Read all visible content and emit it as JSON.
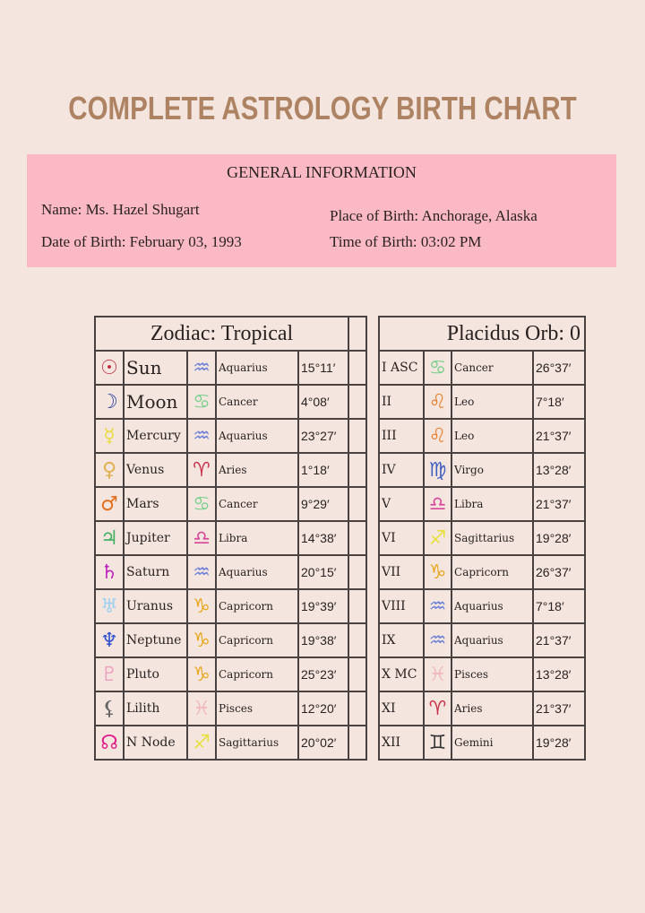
{
  "title": "COMPLETE ASTROLOGY BIRTH CHART",
  "general_info": {
    "heading": "GENERAL INFORMATION",
    "name": "Name: Ms. Hazel Shugart",
    "date_of_birth": "Date of Birth: February 03, 1993",
    "place_of_birth": "Place of Birth: Anchorage, Alaska",
    "time_of_birth": "Time of Birth: 03:02 PM"
  },
  "zodiac_header": "Zodiac: Tropical",
  "houses_header": "Placidus Orb: 0",
  "planets": [
    {
      "icon": "sun-icon",
      "glyph": "☉",
      "color": "#c03040",
      "name": "Sun",
      "sign_icon": "aquarius-icon",
      "sign_glyph": "♒",
      "sign_color": "#6b7fd8",
      "sign": "Aquarius",
      "degree": "15°11′"
    },
    {
      "icon": "moon-icon",
      "glyph": "☽",
      "color": "#3040a0",
      "name": "Moon",
      "sign_icon": "cancer-icon",
      "sign_glyph": "♋",
      "sign_color": "#7ccf8f",
      "sign": "Cancer",
      "degree": "4°08′"
    },
    {
      "icon": "mercury-icon",
      "glyph": "☿",
      "color": "#e8dc40",
      "name": "Mercury",
      "sign_icon": "aquarius-icon",
      "sign_glyph": "♒",
      "sign_color": "#6b7fd8",
      "sign": "Aquarius",
      "degree": "23°27′"
    },
    {
      "icon": "venus-icon",
      "glyph": "♀",
      "color": "#e0b050",
      "name": "Venus",
      "sign_icon": "aries-icon",
      "sign_glyph": "♈",
      "sign_color": "#c8304a",
      "sign": "Aries",
      "degree": "1°18′"
    },
    {
      "icon": "mars-icon",
      "glyph": "♂",
      "color": "#e07020",
      "name": "Mars",
      "sign_icon": "cancer-icon",
      "sign_glyph": "♋",
      "sign_color": "#7ccf8f",
      "sign": "Cancer",
      "degree": "9°29′"
    },
    {
      "icon": "jupiter-icon",
      "glyph": "♃",
      "color": "#40b060",
      "name": "Jupiter",
      "sign_icon": "libra-icon",
      "sign_glyph": "♎",
      "sign_color": "#d8479a",
      "sign": "Libra",
      "degree": "14°38′"
    },
    {
      "icon": "saturn-icon",
      "glyph": "♄",
      "color": "#c020c0",
      "name": "Saturn",
      "sign_icon": "aquarius-icon",
      "sign_glyph": "♒",
      "sign_color": "#6b7fd8",
      "sign": "Aquarius",
      "degree": "20°15′"
    },
    {
      "icon": "uranus-icon",
      "glyph": "♅",
      "color": "#a0d0f0",
      "name": "Uranus",
      "sign_icon": "capricorn-icon",
      "sign_glyph": "♑",
      "sign_color": "#e8a820",
      "sign": "Capricorn",
      "degree": "19°39′"
    },
    {
      "icon": "neptune-icon",
      "glyph": "♆",
      "color": "#3050d0",
      "name": "Neptune",
      "sign_icon": "capricorn-icon",
      "sign_glyph": "♑",
      "sign_color": "#e8a820",
      "sign": "Capricorn",
      "degree": "19°38′"
    },
    {
      "icon": "pluto-icon",
      "glyph": "♇",
      "color": "#f0a0c0",
      "name": "Pluto",
      "sign_icon": "capricorn-icon",
      "sign_glyph": "♑",
      "sign_color": "#e8a820",
      "sign": "Capricorn",
      "degree": "25°23′"
    },
    {
      "icon": "lilith-icon",
      "glyph": "⚸",
      "color": "#666666",
      "name": "Lilith",
      "sign_icon": "pisces-icon",
      "sign_glyph": "♓",
      "sign_color": "#f2b8c0",
      "sign": "Pisces",
      "degree": "12°20′"
    },
    {
      "icon": "north-node-icon",
      "glyph": "☊",
      "color": "#e0208a",
      "name": "N Node",
      "sign_icon": "sagittarius-icon",
      "sign_glyph": "♐",
      "sign_color": "#e8e040",
      "sign": "Sagittarius",
      "degree": "20°02′"
    }
  ],
  "houses": [
    {
      "house": "I ASC",
      "sign_icon": "cancer-icon",
      "sign_glyph": "♋",
      "sign_color": "#7ccf8f",
      "sign": "Cancer",
      "degree": "26°37′"
    },
    {
      "house": "II",
      "sign_icon": "leo-icon",
      "sign_glyph": "♌",
      "sign_color": "#e88030",
      "sign": "Leo",
      "degree": "7°18′"
    },
    {
      "house": "III",
      "sign_icon": "leo-icon",
      "sign_glyph": "♌",
      "sign_color": "#e88030",
      "sign": "Leo",
      "degree": "21°37′"
    },
    {
      "house": "IV",
      "sign_icon": "virgo-icon",
      "sign_glyph": "♍",
      "sign_color": "#4060c0",
      "sign": "Virgo",
      "degree": "13°28′"
    },
    {
      "house": "V",
      "sign_icon": "libra-icon",
      "sign_glyph": "♎",
      "sign_color": "#d8479a",
      "sign": "Libra",
      "degree": "21°37′"
    },
    {
      "house": "VI",
      "sign_icon": "sagittarius-icon",
      "sign_glyph": "♐",
      "sign_color": "#e8e040",
      "sign": "Sagittarius",
      "degree": "19°28′"
    },
    {
      "house": "VII",
      "sign_icon": "capricorn-icon",
      "sign_glyph": "♑",
      "sign_color": "#e8a820",
      "sign": "Capricorn",
      "degree": "26°37′"
    },
    {
      "house": "VIII",
      "sign_icon": "aquarius-icon",
      "sign_glyph": "♒",
      "sign_color": "#6b7fd8",
      "sign": "Aquarius",
      "degree": "7°18′"
    },
    {
      "house": "IX",
      "sign_icon": "aquarius-icon",
      "sign_glyph": "♒",
      "sign_color": "#6b7fd8",
      "sign": "Aquarius",
      "degree": "21°37′"
    },
    {
      "house": "X MC",
      "sign_icon": "pisces-icon",
      "sign_glyph": "♓",
      "sign_color": "#f2b8c0",
      "sign": "Pisces",
      "degree": "13°28′"
    },
    {
      "house": "XI",
      "sign_icon": "aries-icon",
      "sign_glyph": "♈",
      "sign_color": "#c8304a",
      "sign": "Aries",
      "degree": "21°37′"
    },
    {
      "house": "XII",
      "sign_icon": "gemini-icon",
      "sign_glyph": "♊",
      "sign_color": "#333333",
      "sign": "Gemini",
      "degree": "19°28′"
    }
  ]
}
